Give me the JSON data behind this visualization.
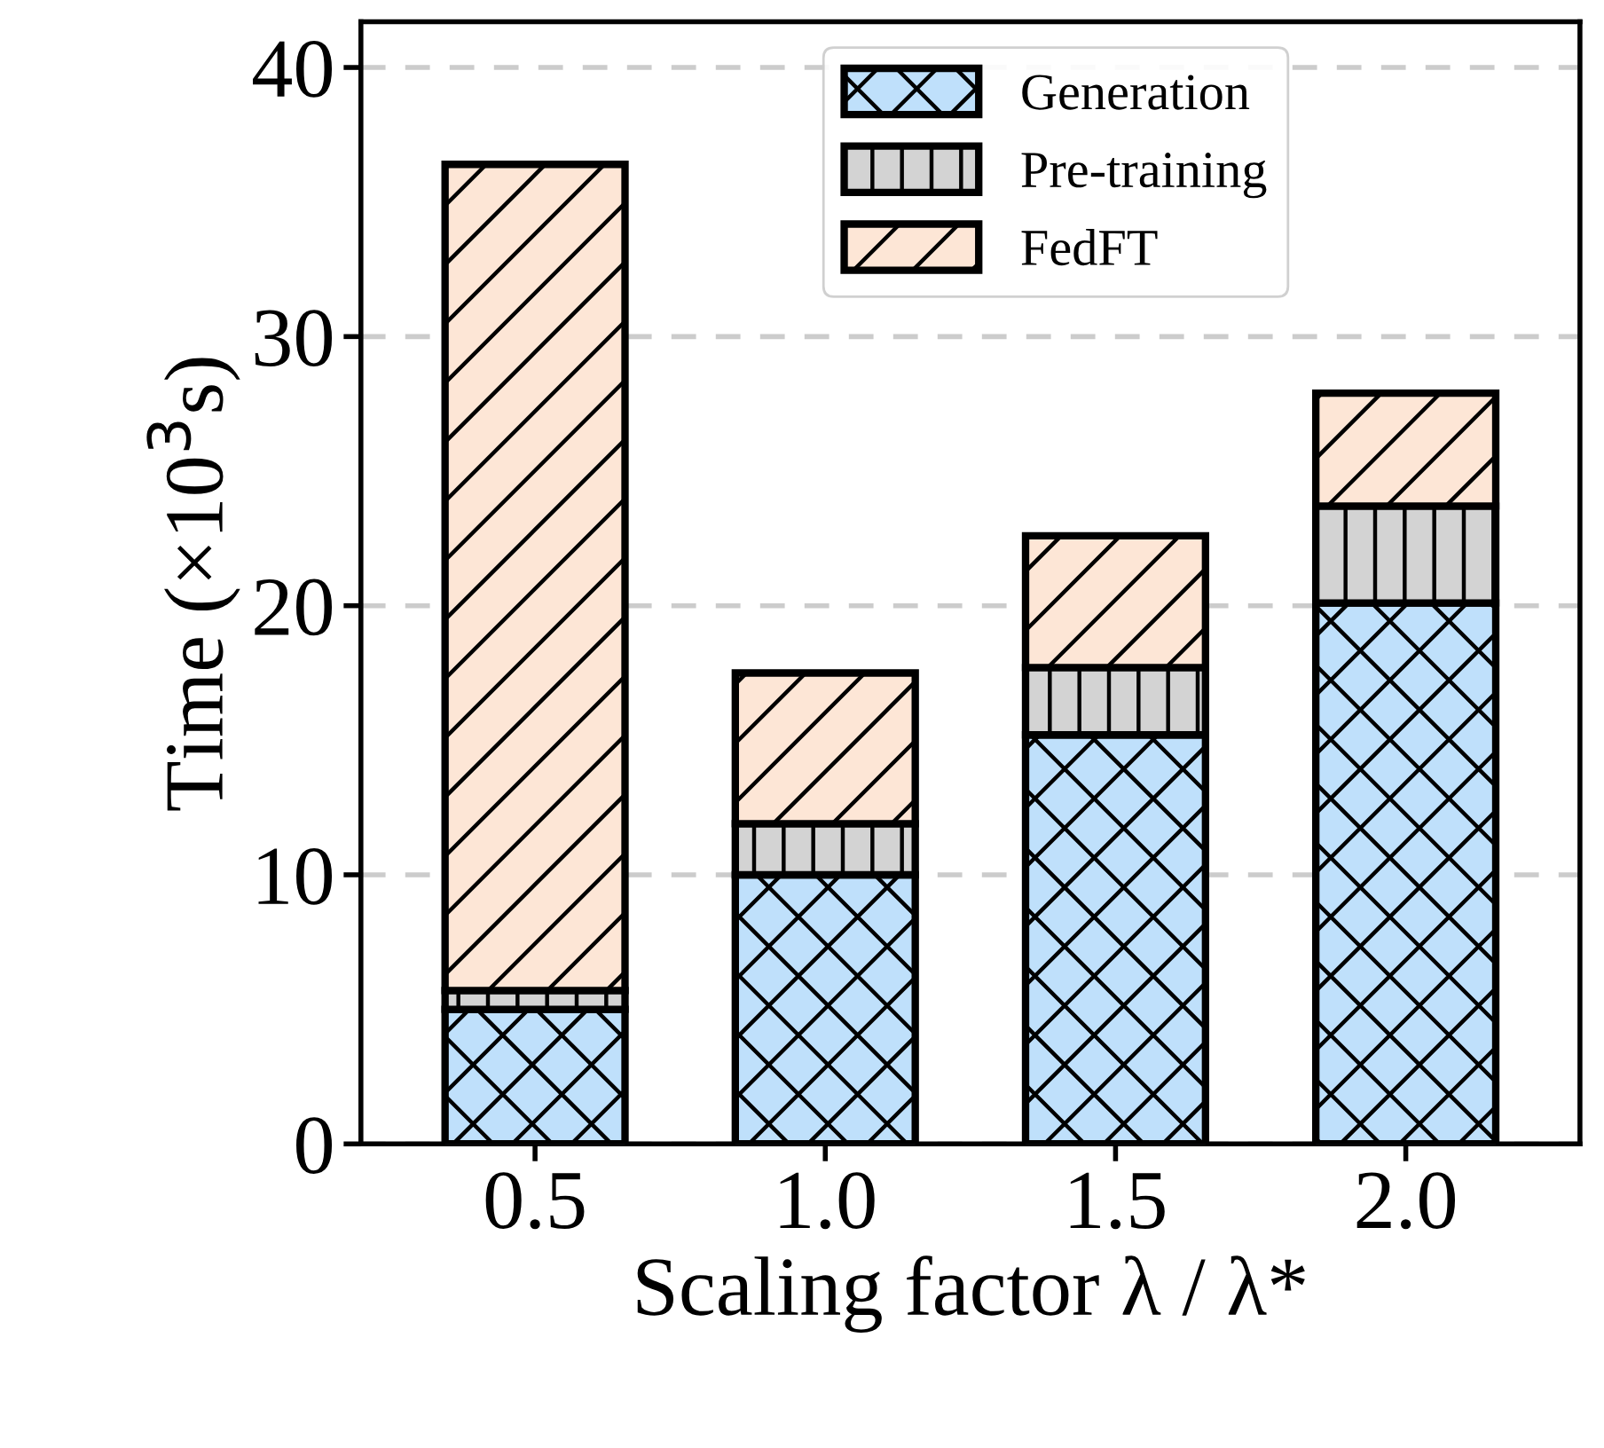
{
  "chart_data": {
    "type": "bar",
    "stacked": true,
    "xlabel": "Scaling factor λ / λ*",
    "ylabel": "Time (×10$^{3}$s)",
    "categories": [
      "0.5",
      "1.0",
      "1.5",
      "2.0"
    ],
    "series": [
      {
        "name": "Generation",
        "color": "#bfe0fb",
        "values": [
          5.0,
          10.0,
          15.2,
          20.1
        ]
      },
      {
        "name": "Pre-training",
        "color": "#d3d3d3",
        "values": [
          0.7,
          1.9,
          2.5,
          3.6
        ]
      },
      {
        "name": "FedFT",
        "color": "#fde6d6",
        "values": [
          30.7,
          5.6,
          4.9,
          4.2
        ]
      }
    ],
    "ylim": [
      0,
      41.7
    ],
    "yticks": [
      0,
      10,
      20,
      30,
      40
    ],
    "grid": "y",
    "legend": "top"
  }
}
